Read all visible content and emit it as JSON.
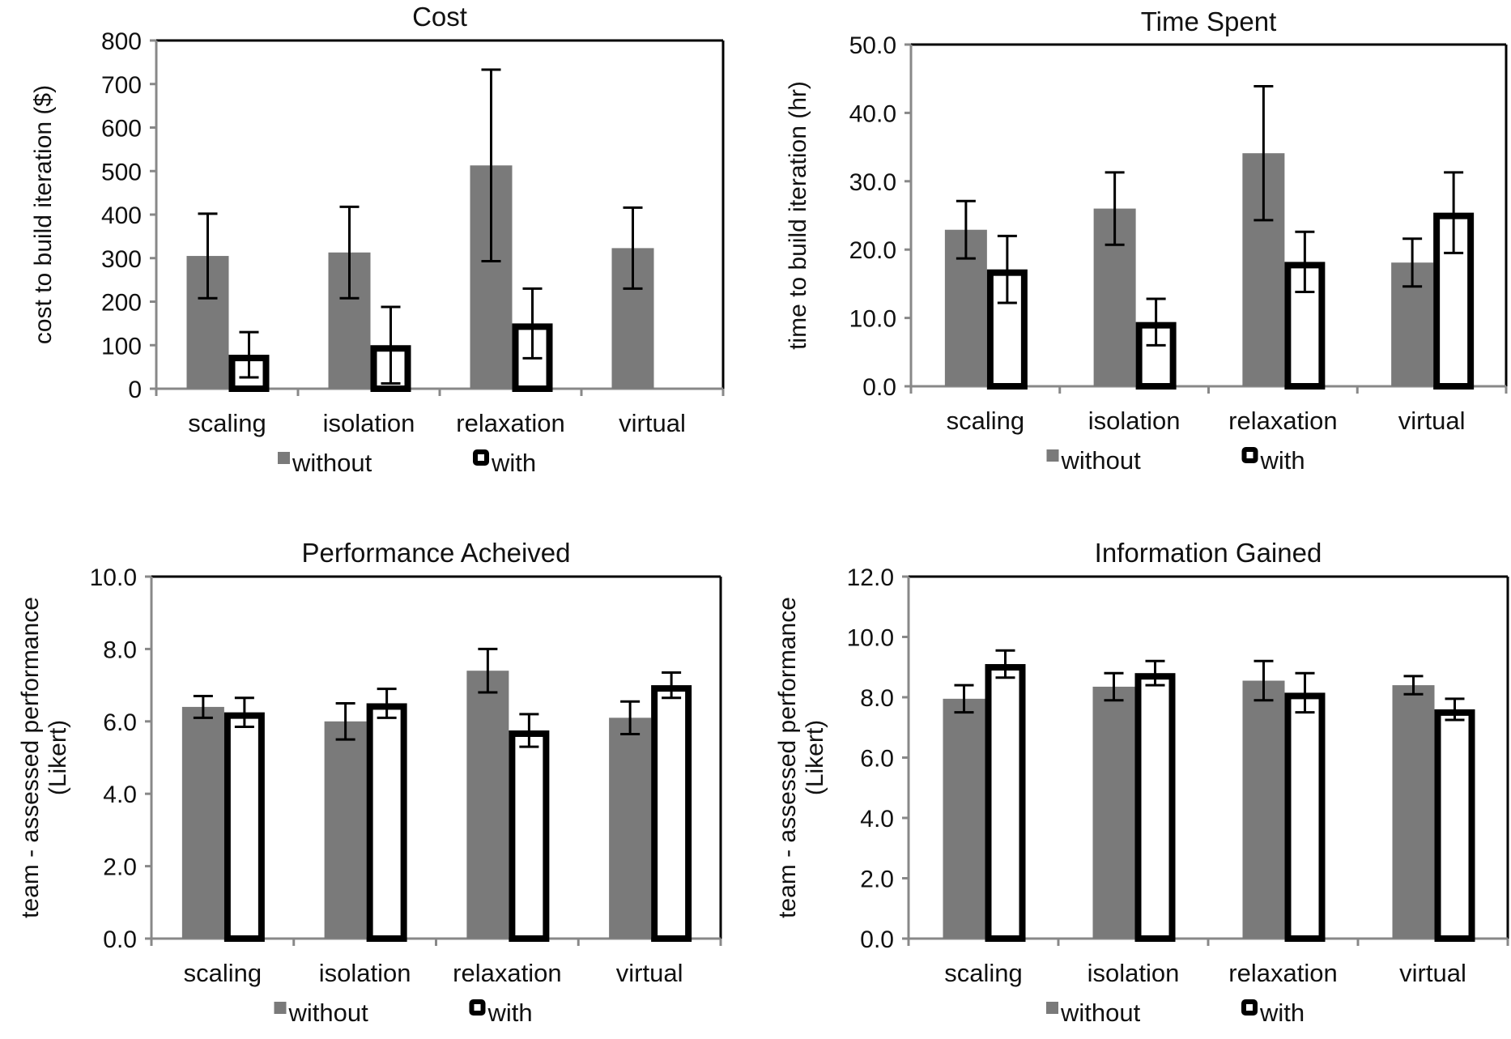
{
  "colors": {
    "without": "#7a7a7a",
    "with_fill": "#ffffff",
    "with_stroke": "#000000",
    "axis": "#888888"
  },
  "chart_data": [
    {
      "type": "bar",
      "title": "Cost",
      "ylabel": "cost to build iteration ($)",
      "categories": [
        "scaling",
        "isolation",
        "relaxation",
        "virtual"
      ],
      "ylim": [
        0,
        800
      ],
      "yticks": [
        "0",
        "100",
        "200",
        "300",
        "400",
        "500",
        "600",
        "700",
        "800"
      ],
      "legend_placement": "bottom",
      "series": [
        {
          "name": "without",
          "values": [
            305,
            313,
            513,
            323
          ],
          "errors": [
            97,
            105,
            220,
            93
          ]
        },
        {
          "name": "with",
          "values": [
            78,
            100,
            150,
            0
          ],
          "errors": [
            52,
            88,
            80,
            0
          ]
        }
      ]
    },
    {
      "type": "bar",
      "title": "Time Spent",
      "ylabel": "time to build iteration (hr)",
      "categories": [
        "scaling",
        "isolation",
        "relaxation",
        "virtual"
      ],
      "ylim": [
        0,
        50
      ],
      "yticks": [
        "0.0",
        "10.0",
        "20.0",
        "30.0",
        "40.0",
        "50.0"
      ],
      "legend_placement": "bottom",
      "series": [
        {
          "name": "without",
          "values": [
            22.9,
            26.0,
            34.1,
            18.1
          ],
          "errors": [
            4.2,
            5.3,
            9.8,
            3.5
          ]
        },
        {
          "name": "with",
          "values": [
            17.1,
            9.4,
            18.2,
            25.4
          ],
          "errors": [
            4.9,
            3.4,
            4.4,
            5.9
          ]
        }
      ]
    },
    {
      "type": "bar",
      "title": "Performance Acheived",
      "ylabel": "team - assessed performance",
      "ylabel2": "(Likert)",
      "categories": [
        "scaling",
        "isolation",
        "relaxation",
        "virtual"
      ],
      "ylim": [
        0,
        10
      ],
      "yticks": [
        "0.0",
        "2.0",
        "4.0",
        "6.0",
        "8.0",
        "10.0"
      ],
      "legend_placement": "bottom",
      "series": [
        {
          "name": "without",
          "values": [
            6.4,
            6.0,
            7.4,
            6.1
          ],
          "errors": [
            0.3,
            0.5,
            0.6,
            0.45
          ]
        },
        {
          "name": "with",
          "values": [
            6.25,
            6.5,
            5.75,
            7.0
          ],
          "errors": [
            0.4,
            0.4,
            0.45,
            0.35
          ]
        }
      ]
    },
    {
      "type": "bar",
      "title": "Information Gained",
      "ylabel": "team - assessed performance",
      "ylabel2": "(Likert)",
      "categories": [
        "scaling",
        "isolation",
        "relaxation",
        "virtual"
      ],
      "ylim": [
        0,
        12
      ],
      "yticks": [
        "0.0",
        "2.0",
        "4.0",
        "6.0",
        "8.0",
        "10.0",
        "12.0"
      ],
      "legend_placement": "bottom",
      "series": [
        {
          "name": "without",
          "values": [
            7.95,
            8.35,
            8.55,
            8.4
          ],
          "errors": [
            0.45,
            0.45,
            0.65,
            0.3
          ]
        },
        {
          "name": "with",
          "values": [
            9.1,
            8.8,
            8.15,
            7.6
          ],
          "errors": [
            0.45,
            0.4,
            0.65,
            0.35
          ]
        }
      ]
    }
  ]
}
